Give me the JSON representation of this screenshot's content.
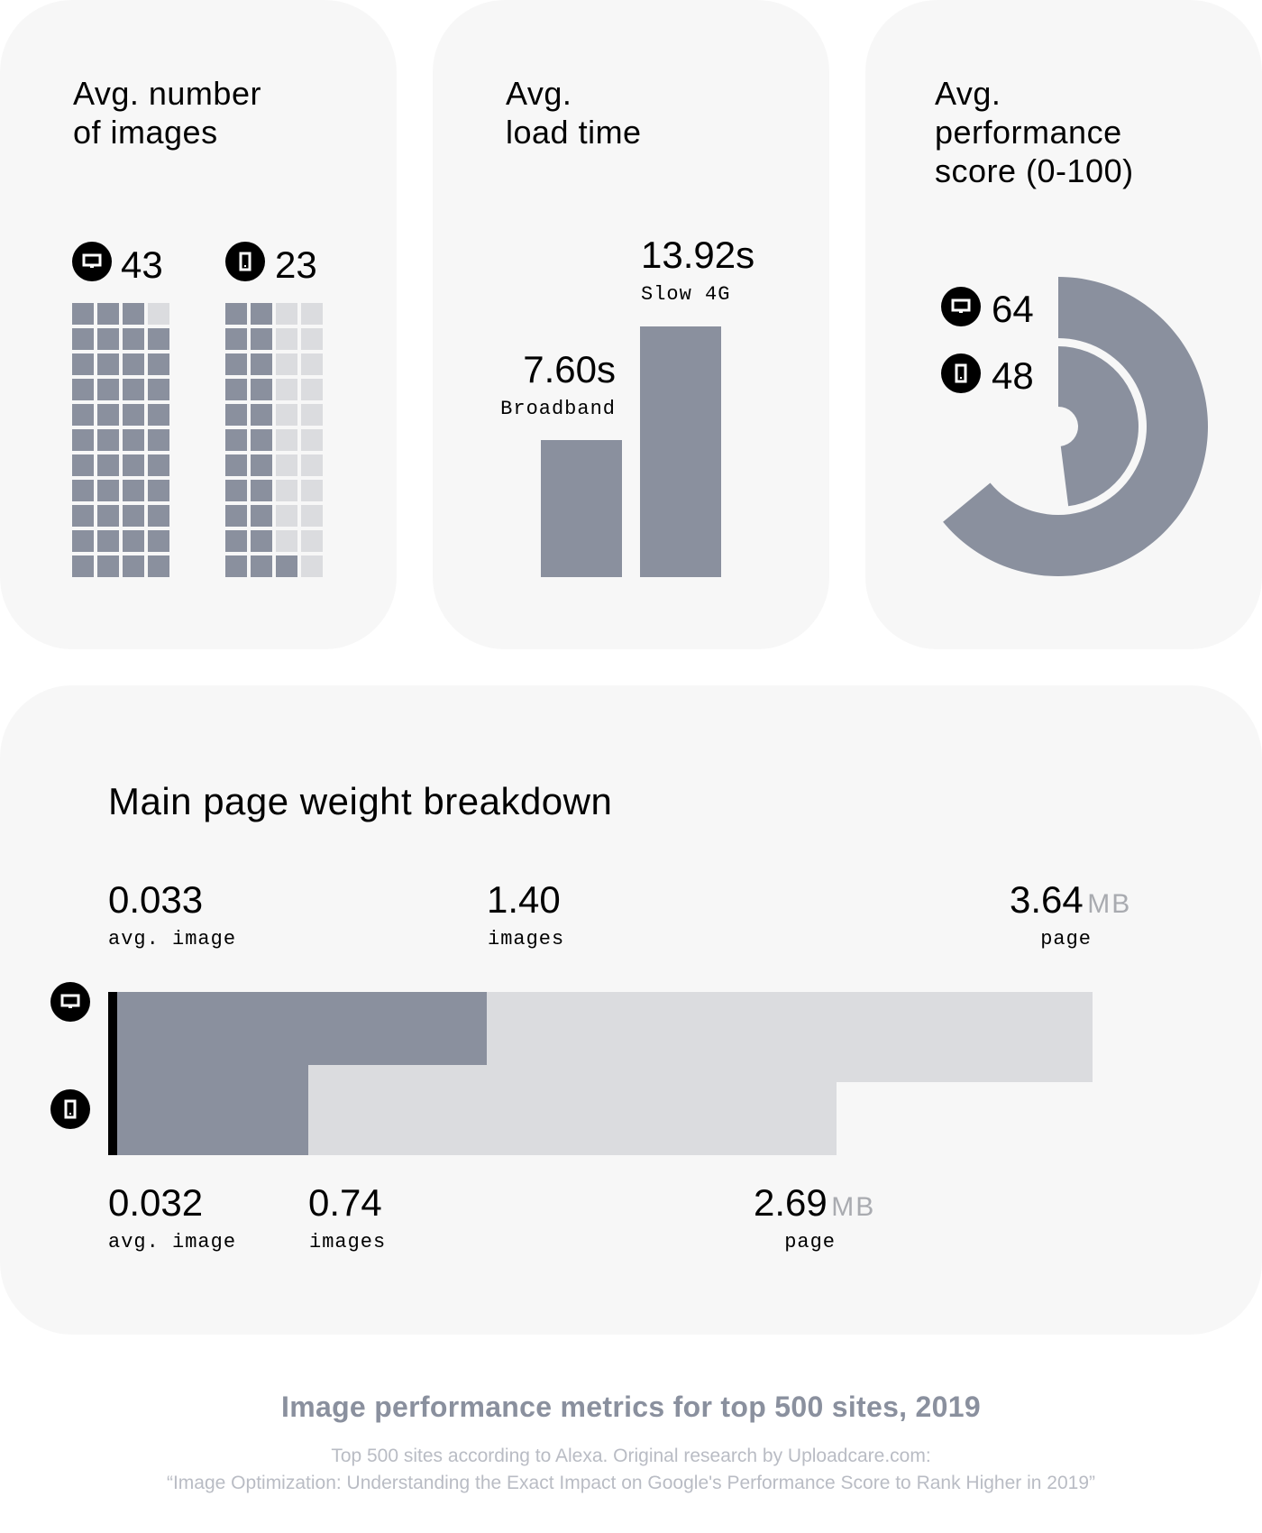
{
  "colors": {
    "card_bg": "#f7f7f7",
    "filled": "#8a909e",
    "empty": "#dbdcdf",
    "accent": "#000000",
    "unit": "#a9abb0",
    "footer_title": "#8a909e",
    "footer_sub": "#b9bcc4"
  },
  "cards": {
    "images": {
      "title_line1": "Avg. number",
      "title_line2": "of images",
      "desktop_value": "43",
      "mobile_value": "23"
    },
    "load_time": {
      "title_line1": "Avg.",
      "title_line2": "load time",
      "broadband_value": "7.60s",
      "broadband_label": "Broadband",
      "slow4g_value": "13.92s",
      "slow4g_label": "Slow 4G"
    },
    "performance": {
      "title_line1": "Avg.",
      "title_line2": "performance",
      "title_line3": "score (0-100)",
      "desktop_value": "64",
      "mobile_value": "48"
    }
  },
  "weight": {
    "title": "Main page weight breakdown",
    "desktop": {
      "avg_image_value": "0.033",
      "avg_image_label": "avg. image",
      "images_value": "1.40",
      "images_label": "images",
      "page_value": "3.64",
      "page_unit": "MB",
      "page_label": "page"
    },
    "mobile": {
      "avg_image_value": "0.032",
      "avg_image_label": "avg. image",
      "images_value": "0.74",
      "images_label": "images",
      "page_value": "2.69",
      "page_unit": "MB",
      "page_label": "page"
    }
  },
  "footer": {
    "title": "Image performance metrics for top 500 sites, 2019",
    "source_line1": "Top 500 sites according to Alexa. Original research by Uploadcare.com:",
    "source_line2": "“Image Optimization: Understanding the Exact Impact on Google's Performance Score to Rank Higher in 2019”"
  },
  "icons": {
    "desktop": "monitor-icon",
    "mobile": "smartphone-icon"
  },
  "chart_data": [
    {
      "type": "waffle",
      "title": "Avg. number of images",
      "categories": [
        "Desktop",
        "Mobile"
      ],
      "values": [
        43,
        23
      ],
      "grid": {
        "columns": 4,
        "rows": 11,
        "total_cells": 44
      }
    },
    {
      "type": "bar",
      "title": "Avg. load time",
      "categories": [
        "Broadband",
        "Slow 4G"
      ],
      "values": [
        7.6,
        13.92
      ],
      "unit": "s",
      "xlabel": "",
      "ylabel": "",
      "grid": false
    },
    {
      "type": "radial_bar",
      "title": "Avg. performance score (0-100)",
      "categories": [
        "Desktop",
        "Mobile"
      ],
      "values": [
        64,
        48
      ],
      "range": [
        0,
        100
      ]
    },
    {
      "type": "bar",
      "orientation": "horizontal",
      "stacked": true,
      "title": "Main page weight breakdown",
      "unit": "MB",
      "categories": [
        "Desktop",
        "Mobile"
      ],
      "series": [
        {
          "name": "avg. image",
          "values": [
            0.033,
            0.032
          ]
        },
        {
          "name": "images",
          "values": [
            1.4,
            0.74
          ]
        },
        {
          "name": "page",
          "values": [
            3.64,
            2.69
          ]
        }
      ]
    }
  ]
}
